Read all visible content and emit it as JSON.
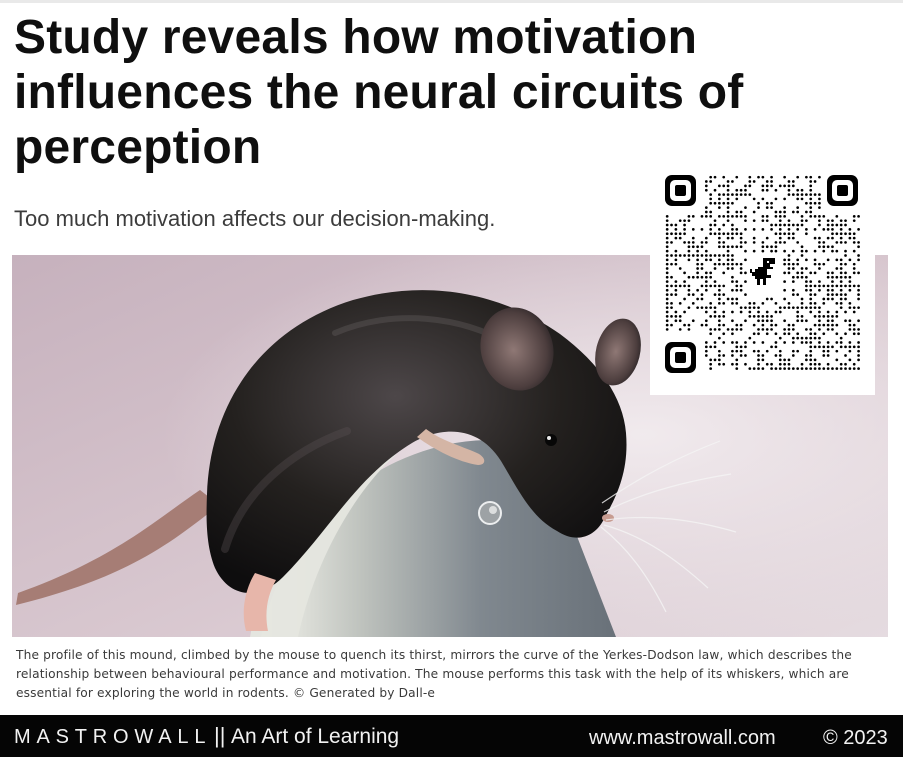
{
  "article": {
    "headline": "Study reveals how motivation influences the neural circuits of perception",
    "subtitle": "Too much motivation affects our decision-making.",
    "image": {
      "subject": "mouse on curved mound",
      "caption": "The profile of this mound, climbed by the mouse to quench its thirst, mirrors the curve of the Yerkes-Dodson law, which describes the relationship between behavioural performance and motivation. The mouse performs this task with the help of its whiskers, which are essential for exploring the world in rodents. © Generated by Dall-e"
    }
  },
  "qr_code": {
    "icon": "dinosaur-icon"
  },
  "footer": {
    "brand": "MASTROWALL",
    "separator": "||",
    "tagline": "An Art of Learning",
    "website": "www.mastrowall.com",
    "copyright": "© 2023"
  },
  "colors": {
    "footer_background": "#050505",
    "footer_text": "#f2f2f2",
    "photo_background": "#d8c7cf"
  }
}
